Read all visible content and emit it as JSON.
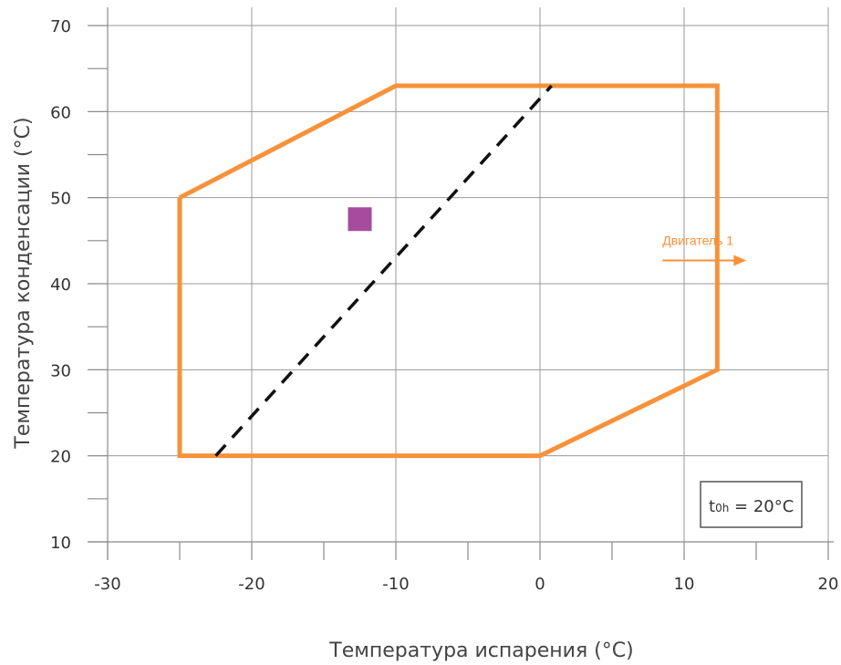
{
  "chart_data": {
    "type": "line",
    "title": "",
    "xlabel": "Температура испарения (°C)",
    "ylabel": "Температура конденсации (°C)",
    "xlim": [
      -30,
      20
    ],
    "ylim": [
      10,
      70
    ],
    "x_ticks": [
      -30,
      -20,
      -10,
      0,
      10,
      20
    ],
    "x_tick_labels": [
      "-30",
      "-20",
      "-10",
      "0",
      "10",
      "20"
    ],
    "x_minor_ticks": [
      -25,
      -15,
      -5,
      5,
      15
    ],
    "y_ticks": [
      10,
      20,
      30,
      40,
      50,
      60,
      70
    ],
    "y_tick_labels": [
      "10",
      "20",
      "30",
      "40",
      "50",
      "60",
      "70"
    ],
    "y_minor_ticks": [
      15,
      25,
      35,
      45,
      55,
      65
    ],
    "grid": true,
    "series": [
      {
        "name": "Двигатель 1",
        "style": "solid",
        "color": "#F7923A",
        "x": [
          -25,
          -10,
          12.3,
          12.3,
          0,
          -25,
          -25
        ],
        "y": [
          50,
          63,
          63,
          30,
          20,
          20,
          50
        ]
      },
      {
        "style": "dashed",
        "color": "#111111",
        "x": [
          -22.5,
          0.8
        ],
        "y": [
          20,
          63
        ]
      }
    ],
    "marker": {
      "shape": "square",
      "color": "#A64C9E",
      "x": -12.5,
      "y": 47.5
    },
    "annotations": {
      "series_label": "Двигатель 1",
      "series_label_at": [
        8.5,
        44.5
      ],
      "box_text": "t0h = 20°C",
      "box_text_main": "t",
      "box_text_sub": "0h",
      "box_text_rest": " = 20°C"
    }
  }
}
